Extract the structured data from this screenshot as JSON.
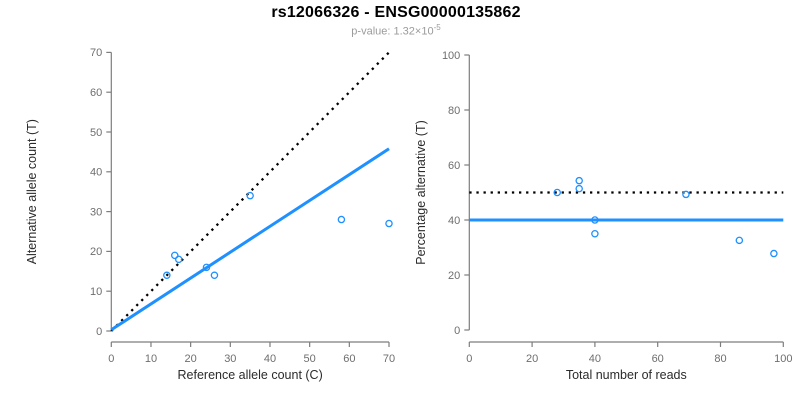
{
  "title": "rs12066326 - ENSG00000135862",
  "subtitle": {
    "text": "p-value: 1.32×10⁻⁵",
    "prefix": "p-value: 1.32×10",
    "exponent": "-5"
  },
  "colors": {
    "accent_blue": "#1E90FF",
    "dotted_black": "#000000",
    "axis": "#7d7d7d",
    "tick_label": "#6e6e6e",
    "subtitle_gray": "#9b9b9b"
  },
  "chart_data": [
    {
      "type": "scatter",
      "panel": "left",
      "xlabel": "Reference allele count (C)",
      "ylabel": "Alternative allele count (T)",
      "xlim": [
        0,
        70
      ],
      "ylim": [
        0,
        70
      ],
      "xticks": [
        0,
        10,
        20,
        30,
        40,
        50,
        60,
        70
      ],
      "yticks": [
        0,
        10,
        20,
        30,
        40,
        50,
        60,
        70
      ],
      "grid": false,
      "points": [
        [
          14,
          14
        ],
        [
          16,
          19
        ],
        [
          17,
          18
        ],
        [
          24,
          16
        ],
        [
          26,
          14
        ],
        [
          35,
          34
        ],
        [
          58,
          28
        ],
        [
          70,
          27
        ]
      ],
      "lines": [
        {
          "name": "identity-line",
          "style": "dotted",
          "color": "#000000",
          "from": [
            0,
            0
          ],
          "to": [
            70,
            70
          ]
        },
        {
          "name": "regression-line",
          "style": "solid",
          "color": "#1E90FF",
          "from": [
            0,
            0.3
          ],
          "to": [
            70,
            45.8
          ]
        }
      ]
    },
    {
      "type": "scatter",
      "panel": "right",
      "xlabel": "Total number of reads",
      "ylabel": "Percentage alternative (T)",
      "xlim": [
        0,
        100
      ],
      "ylim": [
        0,
        100
      ],
      "xticks": [
        0,
        20,
        40,
        60,
        80,
        100
      ],
      "yticks": [
        0,
        20,
        40,
        60,
        80,
        100
      ],
      "grid": false,
      "points": [
        [
          28,
          50
        ],
        [
          35,
          54.3
        ],
        [
          35,
          51.4
        ],
        [
          40,
          40
        ],
        [
          40,
          35
        ],
        [
          69,
          49.3
        ],
        [
          86,
          32.6
        ],
        [
          97,
          27.8
        ]
      ],
      "lines": [
        {
          "name": "fifty-percent-line",
          "style": "dotted",
          "color": "#000000",
          "from": [
            0,
            50
          ],
          "to": [
            100,
            50
          ]
        },
        {
          "name": "mean-percentage-line",
          "style": "solid",
          "color": "#1E90FF",
          "from": [
            0,
            40
          ],
          "to": [
            100,
            40
          ]
        }
      ]
    }
  ]
}
